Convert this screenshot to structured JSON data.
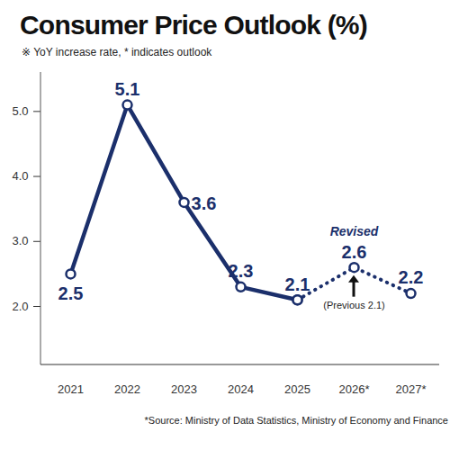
{
  "chart_data": {
    "type": "line",
    "title": "Consumer Price Outlook (%)",
    "subtitle": "※ YoY increase rate, * indicates outlook",
    "source": "*Source: Ministry of Data Statistics, Ministry of Economy and Finance",
    "categories": [
      "2021",
      "2022",
      "2023",
      "2024",
      "2025",
      "2026*",
      "2027*"
    ],
    "series": [
      {
        "color": "#1b2f6b",
        "values": [
          2.5,
          5.1,
          3.6,
          2.3,
          2.1,
          null,
          null
        ],
        "line_style": "solid",
        "marker": "circle"
      },
      {
        "color": "#1b2f6b",
        "values": [
          null,
          null,
          null,
          null,
          2.1,
          2.6,
          2.2
        ],
        "line_style": "dotted",
        "marker": "circle"
      }
    ],
    "ylim": [
      1.1,
      5.6
    ],
    "yticks": [
      2,
      3,
      4,
      5
    ],
    "grid": false,
    "data_labels": true,
    "annotations": [
      {
        "x": "2026*",
        "text": "Revised"
      },
      {
        "x": "2026*",
        "text": "(Previous 2.1)"
      }
    ]
  }
}
